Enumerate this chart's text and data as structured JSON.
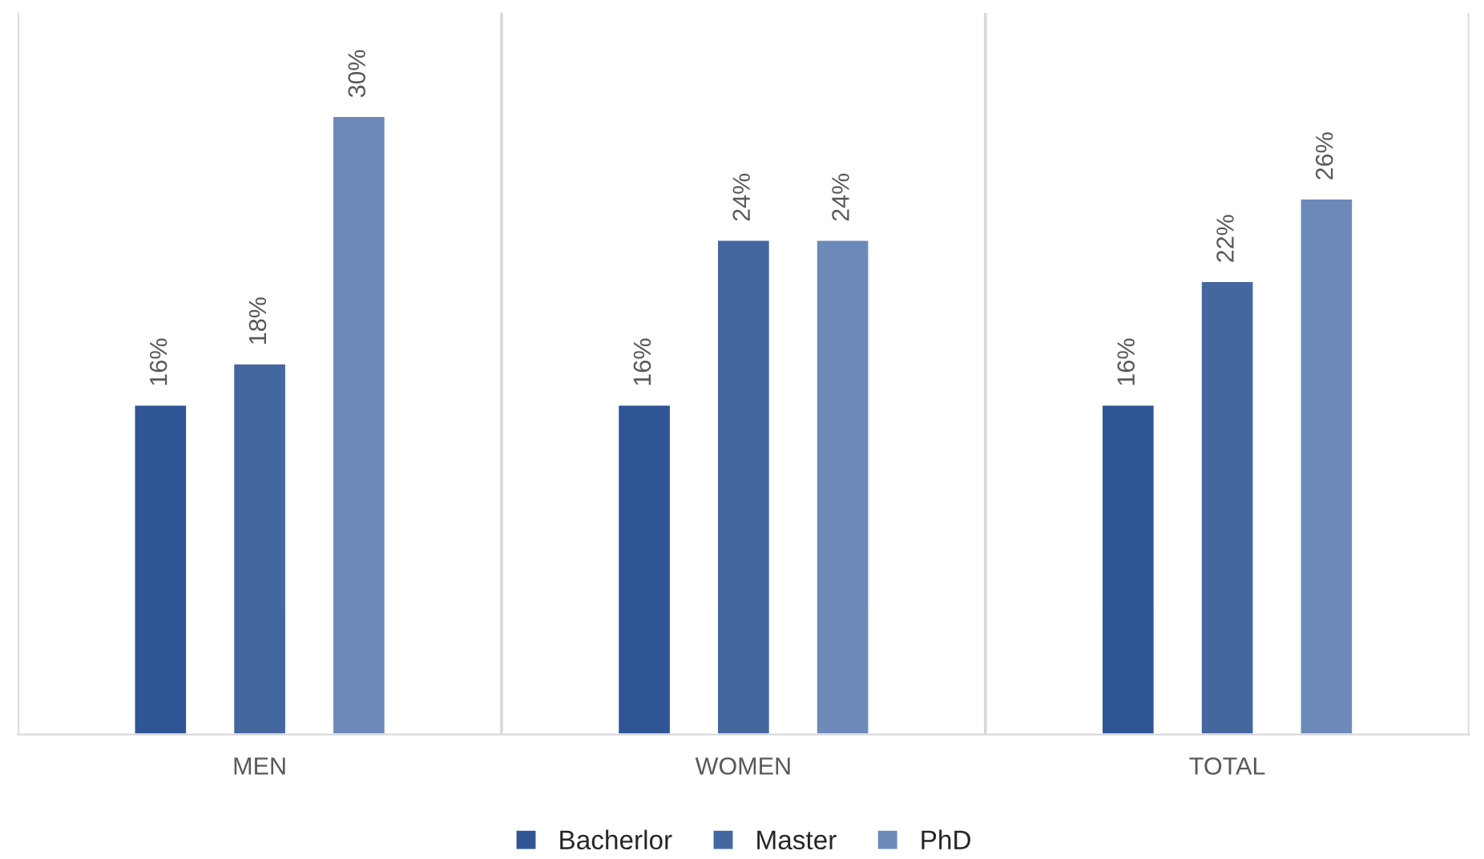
{
  "chart_data": {
    "type": "bar",
    "categories": [
      "MEN",
      "WOMEN",
      "TOTAL"
    ],
    "series": [
      {
        "name": "Bacherlor",
        "color": "#2f5597",
        "values": [
          16,
          16,
          16
        ],
        "value_labels": [
          "16%",
          "16%",
          "16%"
        ]
      },
      {
        "name": "Master",
        "color": "#4467a0",
        "values": [
          18,
          24,
          22
        ],
        "value_labels": [
          "18%",
          "24%",
          "22%"
        ]
      },
      {
        "name": "PhD",
        "color": "#6c8ab9",
        "values": [
          30,
          24,
          26
        ],
        "value_labels": [
          "30%",
          "24%",
          "26%"
        ]
      }
    ],
    "ylim": [
      0,
      35
    ],
    "grid": "x",
    "legend": "bottom",
    "tick_labels": "x"
  }
}
